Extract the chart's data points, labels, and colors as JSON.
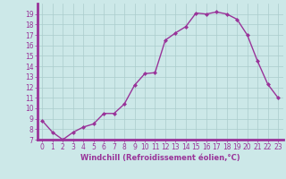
{
  "x": [
    0,
    1,
    2,
    3,
    4,
    5,
    6,
    7,
    8,
    9,
    10,
    11,
    12,
    13,
    14,
    15,
    16,
    17,
    18,
    19,
    20,
    21,
    22,
    23
  ],
  "y": [
    8.8,
    7.7,
    7.0,
    7.7,
    8.2,
    8.5,
    9.5,
    9.5,
    10.4,
    12.2,
    13.3,
    13.4,
    16.5,
    17.2,
    17.8,
    19.1,
    19.0,
    19.2,
    19.0,
    18.5,
    17.0,
    14.5,
    12.3,
    11.0
  ],
  "line_color": "#993399",
  "marker": "D",
  "marker_size": 2,
  "bg_color": "#cce8e8",
  "grid_color": "#aacccc",
  "xlabel": "Windchill (Refroidissement éolien,°C)",
  "ylim": [
    7,
    20
  ],
  "xlim": [
    -0.5,
    23.5
  ],
  "yticks": [
    7,
    8,
    9,
    10,
    11,
    12,
    13,
    14,
    15,
    16,
    17,
    18,
    19
  ],
  "xticks": [
    0,
    1,
    2,
    3,
    4,
    5,
    6,
    7,
    8,
    9,
    10,
    11,
    12,
    13,
    14,
    15,
    16,
    17,
    18,
    19,
    20,
    21,
    22,
    23
  ],
  "tick_color": "#993399",
  "label_color": "#993399",
  "spine_color": "#993399",
  "font_size": 5.5,
  "xlabel_fontsize": 6,
  "line_width": 1.0,
  "axis_linewidth": 1.5
}
